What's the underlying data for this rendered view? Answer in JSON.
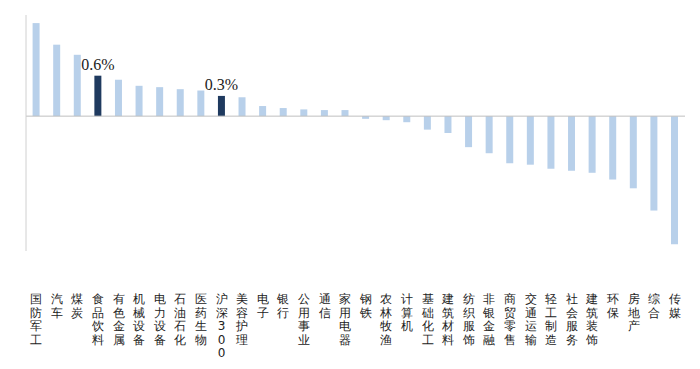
{
  "chart_data": {
    "type": "bar",
    "categories": [
      "国防军工",
      "汽车",
      "煤炭",
      "食品饮料",
      "有色金属",
      "机械设备",
      "电力设备",
      "石油石化",
      "医药生物",
      "沪深300",
      "美容护理",
      "电子",
      "银行",
      "公用事业",
      "通信",
      "家用电器",
      "钢铁",
      "农林牧渔",
      "计算机",
      "基础化工",
      "建筑材料",
      "纺织服饰",
      "非银金融",
      "商贸零售",
      "交通运输",
      "轻工制造",
      "社会服务",
      "建筑装饰",
      "环保",
      "房地产",
      "综合",
      "传媒"
    ],
    "values": [
      1.38,
      1.06,
      0.91,
      0.6,
      0.54,
      0.45,
      0.43,
      0.4,
      0.38,
      0.3,
      0.28,
      0.15,
      0.12,
      0.1,
      0.09,
      0.09,
      -0.04,
      -0.06,
      -0.09,
      -0.2,
      -0.25,
      -0.46,
      -0.55,
      -0.7,
      -0.72,
      -0.78,
      -0.81,
      -0.84,
      -0.94,
      -1.07,
      -1.4,
      -1.9
    ],
    "value_labels": [
      null,
      null,
      null,
      "0.6%",
      null,
      null,
      null,
      null,
      null,
      "0.3%",
      null,
      null,
      null,
      null,
      null,
      null,
      null,
      null,
      null,
      null,
      null,
      null,
      null,
      null,
      null,
      null,
      null,
      null,
      null,
      null,
      null,
      null
    ],
    "colors": [
      "#b8d0ea",
      "#b8d0ea",
      "#b8d0ea",
      "#1f3a5f",
      "#b8d0ea",
      "#b8d0ea",
      "#b8d0ea",
      "#b8d0ea",
      "#b8d0ea",
      "#1f3a5f",
      "#b8d0ea",
      "#b8d0ea",
      "#b8d0ea",
      "#b8d0ea",
      "#b8d0ea",
      "#b8d0ea",
      "#b8d0ea",
      "#b8d0ea",
      "#b8d0ea",
      "#b8d0ea",
      "#b8d0ea",
      "#b8d0ea",
      "#b8d0ea",
      "#b8d0ea",
      "#b8d0ea",
      "#b8d0ea",
      "#b8d0ea",
      "#b8d0ea",
      "#b8d0ea",
      "#b8d0ea",
      "#b8d0ea",
      "#b8d0ea"
    ],
    "ylim": [
      -2,
      1.5
    ],
    "yticks": [],
    "grid": false,
    "data_labels": true,
    "tick_labels": "x"
  }
}
